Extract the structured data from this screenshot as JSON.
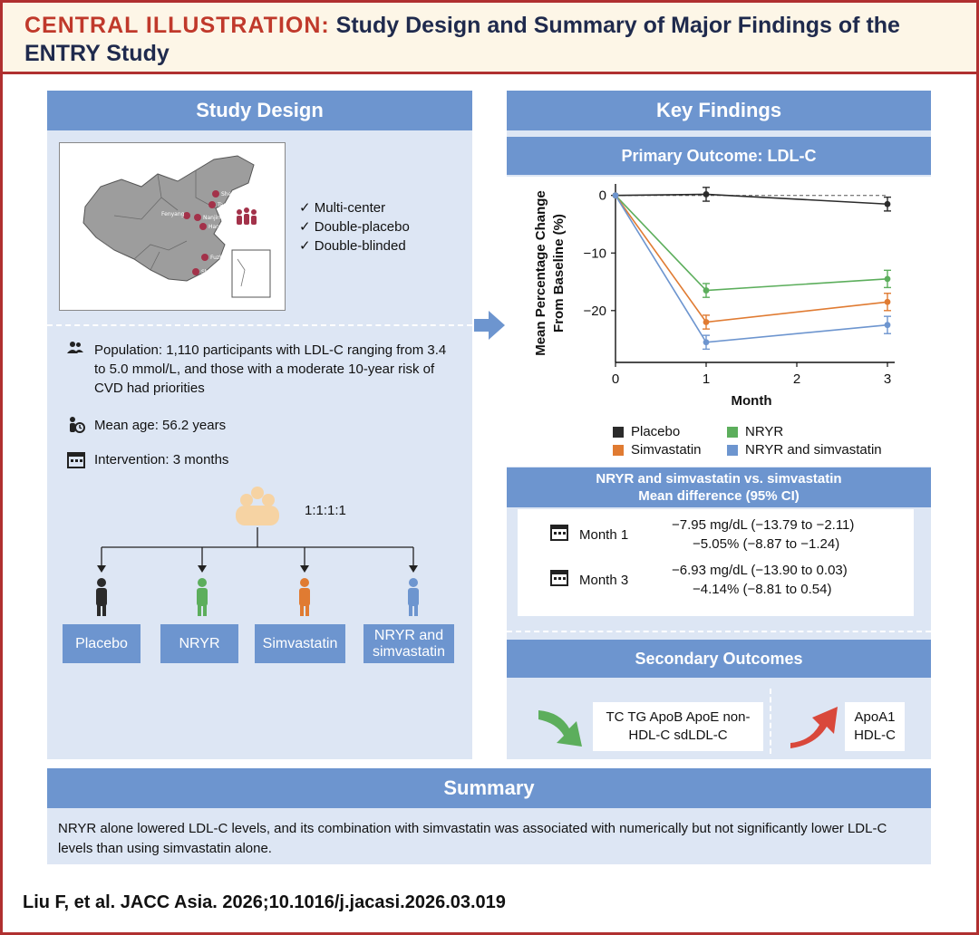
{
  "header": {
    "title_lead": "CENTRAL ILLUSTRATION:",
    "title_rest": "Study Design and Summary of Major Findings of the ENTRY Study"
  },
  "study_design": {
    "title": "Study Design",
    "map_cities": [
      "Shenyang",
      "Tangshan",
      "Fenyang",
      "Nanjing",
      "Hangzhou",
      "Fuzhou",
      "Shenzhen"
    ],
    "checklist": [
      "Multi-center",
      "Double-placebo",
      "Double-blinded"
    ],
    "population": "Population: 1,110 participants with LDL-C ranging from 3.4 to 5.0 mmol/L, and those with a moderate 10-year risk of CVD had priorities",
    "mean_age": "Mean age: 56.2 years",
    "intervention": "Intervention: 3 months",
    "ratio": "1:1:1:1",
    "arms": [
      {
        "label": "Placebo",
        "color": "#2b2b2b"
      },
      {
        "label": "NRYR",
        "color": "#5cae5c"
      },
      {
        "label": "Simvastatin",
        "color": "#e07b32"
      },
      {
        "label": "NRYR and simvastatin",
        "color": "#6d95cf"
      }
    ]
  },
  "key_findings": {
    "title": "Key Findings",
    "primary_title": "Primary Outcome: LDL-C",
    "md_title_1": "NRYR and simvastatin vs. simvastatin",
    "md_title_2": "Mean difference (95% CI)",
    "md_rows": [
      {
        "label": "Month 1",
        "line1": "−7.95 mg/dL (−13.79 to −2.11)",
        "line2": "−5.05% (−8.87 to −1.24)"
      },
      {
        "label": "Month 3",
        "line1": "−6.93 mg/dL (−13.90 to 0.03)",
        "line2": "−4.14% (−8.81 to 0.54)"
      }
    ],
    "secondary_title": "Secondary Outcomes",
    "secondary_down": "TC TG ApoB ApoE non-HDL-C sdLDL-C",
    "secondary_up": "ApoA1 HDL-C",
    "down_color": "#5cae5c",
    "up_color": "#d9483b"
  },
  "chart_data": {
    "type": "line",
    "xlabel": "Month",
    "ylabel": "Mean Percentage Change From Baseline (%)",
    "xlim": [
      0,
      3
    ],
    "ylim": [
      -29,
      2
    ],
    "xticks": [
      0,
      1,
      2,
      3
    ],
    "yticks": [
      0,
      -10,
      -20
    ],
    "reference_line": 0,
    "legend_position": "bottom",
    "series": [
      {
        "name": "Placebo",
        "color": "#2b2b2b",
        "x": [
          0,
          1,
          3
        ],
        "y": [
          0,
          0.2,
          -1.5
        ],
        "err": [
          0,
          1.2,
          1.2
        ]
      },
      {
        "name": "NRYR",
        "color": "#5cae5c",
        "x": [
          0,
          1,
          3
        ],
        "y": [
          0,
          -16.5,
          -14.5
        ],
        "err": [
          0,
          1.2,
          1.5
        ]
      },
      {
        "name": "Simvastatin",
        "color": "#e07b32",
        "x": [
          0,
          1,
          3
        ],
        "y": [
          0,
          -22,
          -18.5
        ],
        "err": [
          0,
          1.2,
          1.5
        ]
      },
      {
        "name": "NRYR and simvastatin",
        "color": "#6d95cf",
        "x": [
          0,
          1,
          3
        ],
        "y": [
          0,
          -25.5,
          -22.5
        ],
        "err": [
          0,
          1.2,
          1.5
        ]
      }
    ]
  },
  "summary": {
    "title": "Summary",
    "text": "NRYR alone lowered LDL-C levels, and its combination with simvastatin was associated with numerically but not significantly lower LDL-C levels than using simvastatin alone."
  },
  "citation": "Liu F, et al. JACC Asia. 2026;10.1016/j.jacasi.2026.03.019",
  "colors": {
    "accent": "#b03030",
    "panel": "#dde6f4",
    "panel_head": "#6d95cf",
    "title_navy": "#1f2a4d"
  }
}
